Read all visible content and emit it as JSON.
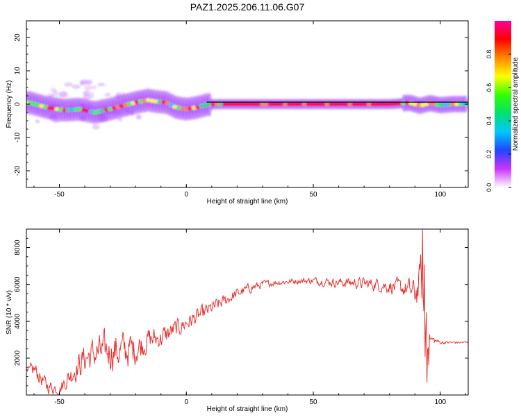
{
  "title": "PAZ1.2025.206.11.06.G07",
  "chart_data": [
    {
      "type": "heatmap",
      "xlabel": "Height of straight line (km)",
      "ylabel": "Frequency (Hz)",
      "xlim": [
        -63,
        111
      ],
      "ylim": [
        -25,
        25
      ],
      "xticks": [
        "-50",
        "0",
        "50",
        "100"
      ],
      "yticks": [
        "-20",
        "-10",
        "0",
        "10",
        "20"
      ],
      "colorbar": {
        "label": "Normalized spectral amplitude",
        "range": [
          0,
          1
        ],
        "ticks": [
          "0.0",
          "0.2",
          "0.4",
          "0.6",
          "0.8"
        ],
        "colors": [
          "#ffffff",
          "#cc33ff",
          "#2244ff",
          "#00c8ff",
          "#00e070",
          "#33ff00",
          "#ffff00",
          "#ff8800",
          "#ff0000",
          "#ff0099"
        ]
      },
      "ridge": {
        "x": [
          -62,
          -55,
          -48,
          -42,
          -36,
          -30,
          -25,
          -20,
          -15,
          -12,
          -8,
          -4,
          0,
          4,
          8,
          12,
          20,
          40,
          60,
          80,
          88,
          92,
          96,
          100,
          105,
          111
        ],
        "y": [
          0.5,
          -1.0,
          -1.8,
          -1.5,
          -2.5,
          -1.5,
          -0.5,
          0.5,
          1.2,
          0.8,
          0.5,
          -1.0,
          -1.5,
          -1.0,
          -0.2,
          0.0,
          0.0,
          0.0,
          0.0,
          0.0,
          0.4,
          -0.5,
          0.3,
          -0.3,
          0.0,
          0.0
        ]
      },
      "background_freq_line": 0.6,
      "grid": false
    },
    {
      "type": "line",
      "xlabel": "Height of straight line (km)",
      "ylabel": "SNR (10 * v/v)",
      "xlim": [
        -63,
        111
      ],
      "ylim": [
        0,
        9000
      ],
      "xticks": [
        "-50",
        "0",
        "50",
        "100"
      ],
      "yticks": [
        "2000",
        "4000",
        "6000",
        "8000"
      ],
      "color": "#e8312f",
      "grid": false,
      "series": [
        {
          "x": [
            -63,
            -60,
            -55,
            -50,
            -45,
            -40,
            -35,
            -30,
            -25,
            -20,
            -15,
            -10,
            -5,
            0,
            5,
            10,
            15,
            20,
            25,
            30,
            35,
            40,
            45,
            50,
            55,
            60,
            65,
            70,
            75,
            80,
            85,
            88,
            90,
            92,
            93,
            94,
            95,
            96,
            97,
            100,
            105,
            111
          ],
          "y": [
            1000,
            1400,
            500,
            300,
            1200,
            2000,
            2300,
            2400,
            2400,
            2500,
            3000,
            3100,
            3500,
            3900,
            4300,
            4700,
            5100,
            5500,
            5800,
            6000,
            6100,
            6150,
            6200,
            6200,
            6150,
            6100,
            6100,
            6050,
            6000,
            5900,
            5800,
            5700,
            5500,
            6000,
            7000,
            4000,
            2000,
            3000,
            3000,
            2850,
            2850,
            2850
          ],
          "amplitude": [
            600,
            700,
            600,
            500,
            900,
            1300,
            1400,
            1600,
            1600,
            1300,
            1000,
            900,
            800,
            700,
            650,
            600,
            500,
            450,
            400,
            300,
            250,
            250,
            250,
            300,
            350,
            400,
            450,
            500,
            550,
            600,
            700,
            900,
            1200,
            1800,
            2200,
            2400,
            1500,
            500,
            300,
            150,
            100,
            100
          ]
        }
      ]
    }
  ]
}
